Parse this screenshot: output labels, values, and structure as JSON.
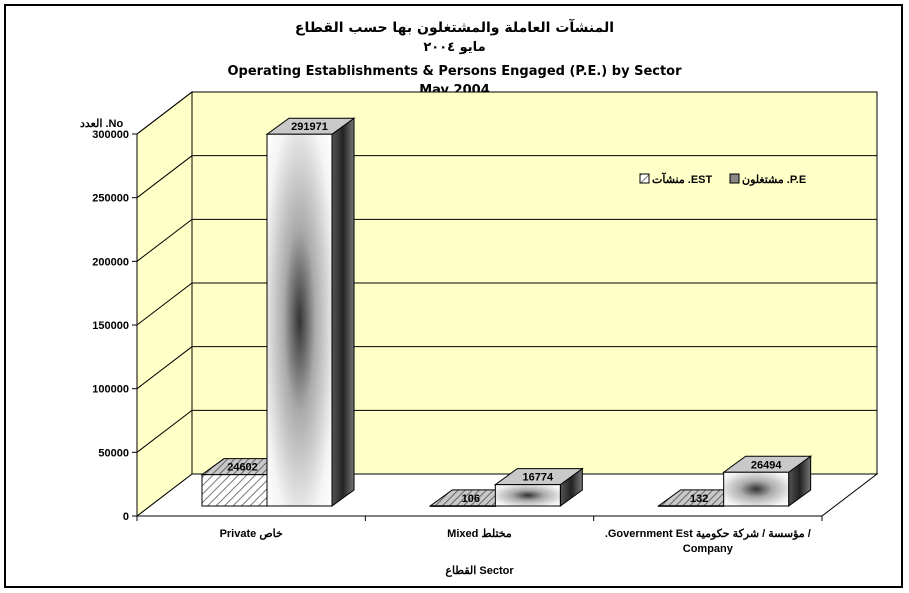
{
  "titles": {
    "line1": "المنشآت العاملة والمشتغلون بها حسب القطاع",
    "line2": "مايو ٢٠٠٤",
    "line3": "Operating Establishments & Persons Engaged (P.E.) by Sector",
    "line4": "May 2004"
  },
  "chart_data": {
    "type": "bar",
    "ylabel": "العدد .No",
    "xlabel": "القطاع Sector",
    "ylim": [
      0,
      300000
    ],
    "y_ticks": [
      0,
      50000,
      100000,
      150000,
      200000,
      250000,
      300000
    ],
    "categories": [
      [
        "Private  خاص"
      ],
      [
        "Mixed  مختلط"
      ],
      [
        ".Government Est  مؤسسة / شركة حكومية  /",
        "Company"
      ]
    ],
    "series": [
      {
        "name": "منشآت  .EST",
        "values": [
          24602,
          106,
          132
        ]
      },
      {
        "name": "مشتغلون  .P.E",
        "values": [
          291971,
          16774,
          26494
        ]
      }
    ],
    "legend_position": "upper-right",
    "grid": true,
    "colors": {
      "plot_area": "#ffffc8",
      "wall_side": "#ffffc8",
      "est_fill": "#b8b8b8",
      "pe_fill": "#e8e8e8",
      "frame": "#000000"
    }
  }
}
